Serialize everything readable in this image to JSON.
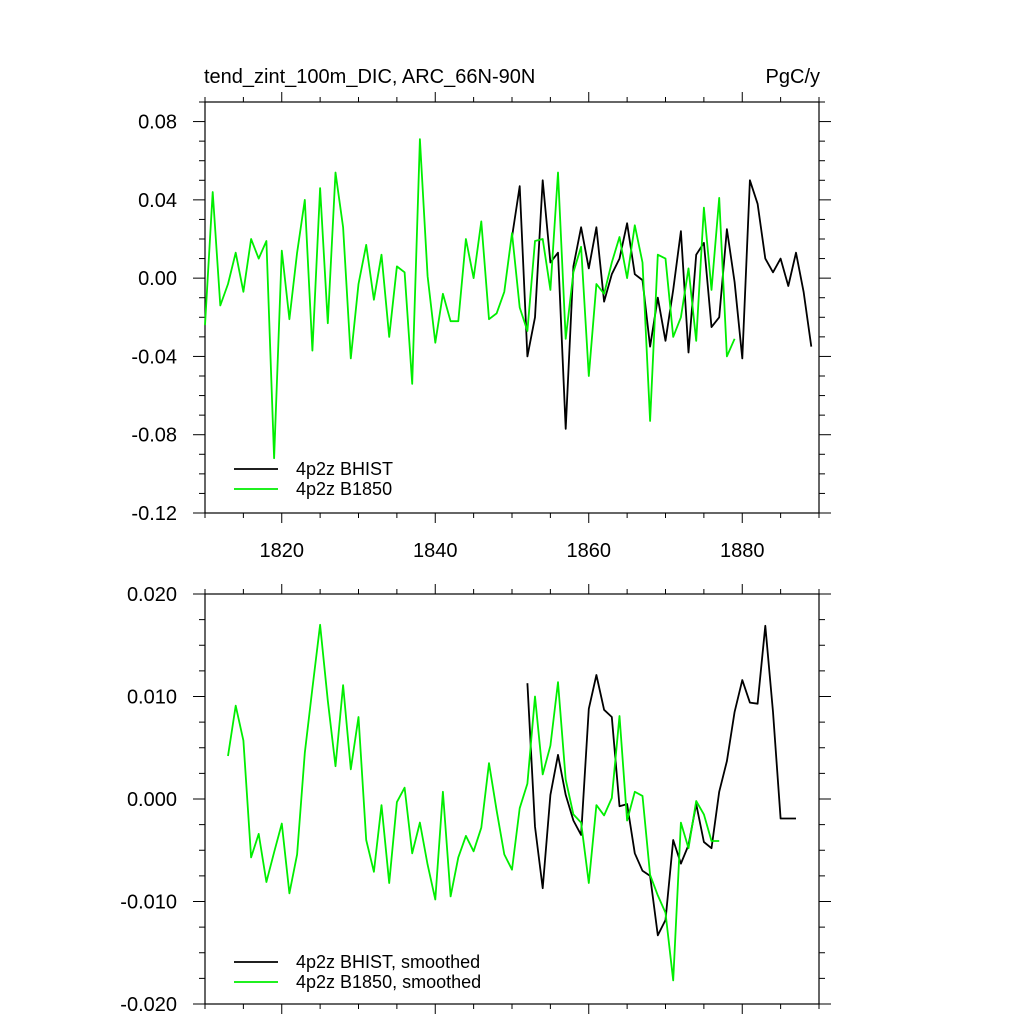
{
  "chart_data": [
    {
      "type": "line",
      "title": "tend_zint_100m_DIC, ARC_66N-90N",
      "units": "PgC/y",
      "xlim": [
        1810,
        1890
      ],
      "ylim": [
        -0.12,
        0.09
      ],
      "x_ticks": [
        1820,
        1840,
        1860,
        1880
      ],
      "x_tick_labels": [
        "1820",
        "1840",
        "1860",
        "1880"
      ],
      "y_ticks": [
        0.08,
        0.04,
        0.0,
        -0.04,
        -0.08,
        -0.12
      ],
      "y_tick_labels": [
        "0.08",
        "0.04",
        "0.00",
        "-0.04",
        "-0.08",
        "-0.12"
      ],
      "legend_position": "bottom-left",
      "series": [
        {
          "name": "4p2z BHIST",
          "color": "#000000",
          "x": [
            1850,
            1851,
            1852,
            1853,
            1854,
            1855,
            1856,
            1857,
            1858,
            1859,
            1860,
            1861,
            1862,
            1863,
            1864,
            1865,
            1866,
            1867,
            1868,
            1869,
            1870,
            1871,
            1872,
            1873,
            1874,
            1875,
            1876,
            1877,
            1878,
            1879,
            1880,
            1881,
            1882,
            1883,
            1884,
            1885,
            1886,
            1887,
            1888,
            1889
          ],
          "y": [
            0.021,
            0.047,
            -0.04,
            -0.02,
            0.05,
            0.008,
            0.013,
            -0.077,
            0.006,
            0.026,
            0.005,
            0.026,
            -0.012,
            0.002,
            0.01,
            0.028,
            0.002,
            -0.001,
            -0.035,
            -0.01,
            -0.032,
            -0.006,
            0.024,
            -0.038,
            0.012,
            0.018,
            -0.025,
            -0.02,
            0.025,
            -0.002,
            -0.041,
            0.05,
            0.038,
            0.01,
            0.003,
            0.01,
            -0.004,
            0.013,
            -0.007,
            -0.035
          ]
        },
        {
          "name": "4p2z B1850",
          "color": "#00ee00",
          "x": [
            1810,
            1811,
            1812,
            1813,
            1814,
            1815,
            1816,
            1817,
            1818,
            1819,
            1820,
            1821,
            1822,
            1823,
            1824,
            1825,
            1826,
            1827,
            1828,
            1829,
            1830,
            1831,
            1832,
            1833,
            1834,
            1835,
            1836,
            1837,
            1838,
            1839,
            1840,
            1841,
            1842,
            1843,
            1844,
            1845,
            1846,
            1847,
            1848,
            1849,
            1850,
            1851,
            1852,
            1853,
            1854,
            1855,
            1856,
            1857,
            1858,
            1859,
            1860,
            1861,
            1862,
            1863,
            1864,
            1865,
            1866,
            1867,
            1868,
            1869,
            1870,
            1871,
            1872,
            1873,
            1874,
            1875,
            1876,
            1877,
            1878,
            1879
          ],
          "y": [
            -0.024,
            0.044,
            -0.014,
            -0.003,
            0.013,
            -0.007,
            0.02,
            0.01,
            0.019,
            -0.092,
            0.014,
            -0.021,
            0.013,
            0.04,
            -0.037,
            0.046,
            -0.023,
            0.054,
            0.026,
            -0.041,
            -0.003,
            0.017,
            -0.011,
            0.012,
            -0.03,
            0.006,
            0.003,
            -0.054,
            0.071,
            0.001,
            -0.033,
            -0.008,
            -0.022,
            -0.022,
            0.02,
            0.0,
            0.029,
            -0.021,
            -0.018,
            -0.007,
            0.023,
            -0.015,
            -0.027,
            0.019,
            0.02,
            -0.006,
            0.054,
            -0.031,
            0.003,
            0.016,
            -0.05,
            -0.003,
            -0.008,
            0.008,
            0.021,
            0.0,
            0.027,
            0.008,
            -0.073,
            0.012,
            0.01,
            -0.03,
            -0.02,
            0.005,
            -0.032,
            0.036,
            -0.006,
            0.041,
            -0.04,
            -0.031
          ]
        }
      ]
    },
    {
      "type": "line",
      "xlim": [
        1810,
        1890
      ],
      "ylim": [
        -0.02,
        0.02
      ],
      "x_ticks": [
        1820,
        1840,
        1860,
        1880
      ],
      "y_ticks": [
        0.02,
        0.01,
        0.0,
        -0.01,
        -0.02
      ],
      "y_tick_labels": [
        "0.020",
        "0.010",
        "0.000",
        "-0.010",
        "-0.020"
      ],
      "legend_position": "bottom-left",
      "series": [
        {
          "name": "4p2z BHIST, smoothed",
          "color": "#000000",
          "x": [
            1852,
            1853,
            1854,
            1855,
            1856,
            1857,
            1858,
            1859,
            1860,
            1861,
            1862,
            1863,
            1864,
            1865,
            1866,
            1867,
            1868,
            1869,
            1870,
            1871,
            1872,
            1873,
            1874,
            1875,
            1876,
            1877,
            1878,
            1879,
            1880,
            1881,
            1882,
            1883,
            1884,
            1885,
            1886,
            1887
          ],
          "y": [
            0.0113,
            -0.0027,
            -0.0087,
            0.0004,
            0.0043,
            0.0004,
            -0.0021,
            -0.0035,
            0.0088,
            0.0121,
            0.0087,
            0.008,
            -0.0007,
            -0.0005,
            -0.0053,
            -0.007,
            -0.0075,
            -0.0133,
            -0.0118,
            -0.004,
            -0.0063,
            -0.0045,
            -0.0005,
            -0.0042,
            -0.0048,
            0.0007,
            0.0037,
            0.0085,
            0.0116,
            0.0094,
            0.0093,
            0.0169,
            0.0085,
            -0.0019,
            -0.0019,
            -0.0019
          ]
        },
        {
          "name": "4p2z B1850, smoothed",
          "color": "#00ee00",
          "x": [
            1813,
            1814,
            1815,
            1816,
            1817,
            1818,
            1819,
            1820,
            1821,
            1822,
            1823,
            1824,
            1825,
            1826,
            1827,
            1828,
            1829,
            1830,
            1831,
            1832,
            1833,
            1834,
            1835,
            1836,
            1837,
            1838,
            1839,
            1840,
            1841,
            1842,
            1843,
            1844,
            1845,
            1846,
            1847,
            1848,
            1849,
            1850,
            1851,
            1852,
            1853,
            1854,
            1855,
            1856,
            1857,
            1858,
            1859,
            1860,
            1861,
            1862,
            1863,
            1864,
            1865,
            1866,
            1867,
            1868,
            1869,
            1870,
            1871,
            1872,
            1873,
            1874,
            1875,
            1876,
            1877
          ],
          "y": [
            0.0042,
            0.0091,
            0.0057,
            -0.0057,
            -0.0034,
            -0.0081,
            -0.0052,
            -0.0024,
            -0.0092,
            -0.0054,
            0.0045,
            0.0108,
            0.017,
            0.0096,
            0.0032,
            0.0111,
            0.0029,
            0.008,
            -0.004,
            -0.0071,
            -0.0006,
            -0.0082,
            -0.0003,
            0.0011,
            -0.0053,
            -0.0023,
            -0.0064,
            -0.0098,
            0.0007,
            -0.0095,
            -0.0057,
            -0.0036,
            -0.0051,
            -0.0028,
            0.0035,
            -0.0011,
            -0.0054,
            -0.0069,
            -0.0009,
            0.0015,
            0.01,
            0.0024,
            0.0052,
            0.0114,
            0.0019,
            -0.0015,
            -0.0023,
            -0.0082,
            -0.0006,
            -0.0016,
            0.0001,
            0.0081,
            -0.0021,
            0.0007,
            0.0003,
            -0.0074,
            -0.0094,
            -0.0111,
            -0.0177,
            -0.0023,
            -0.0048,
            -0.0002,
            -0.0015,
            -0.0041,
            -0.0041
          ]
        }
      ]
    }
  ]
}
